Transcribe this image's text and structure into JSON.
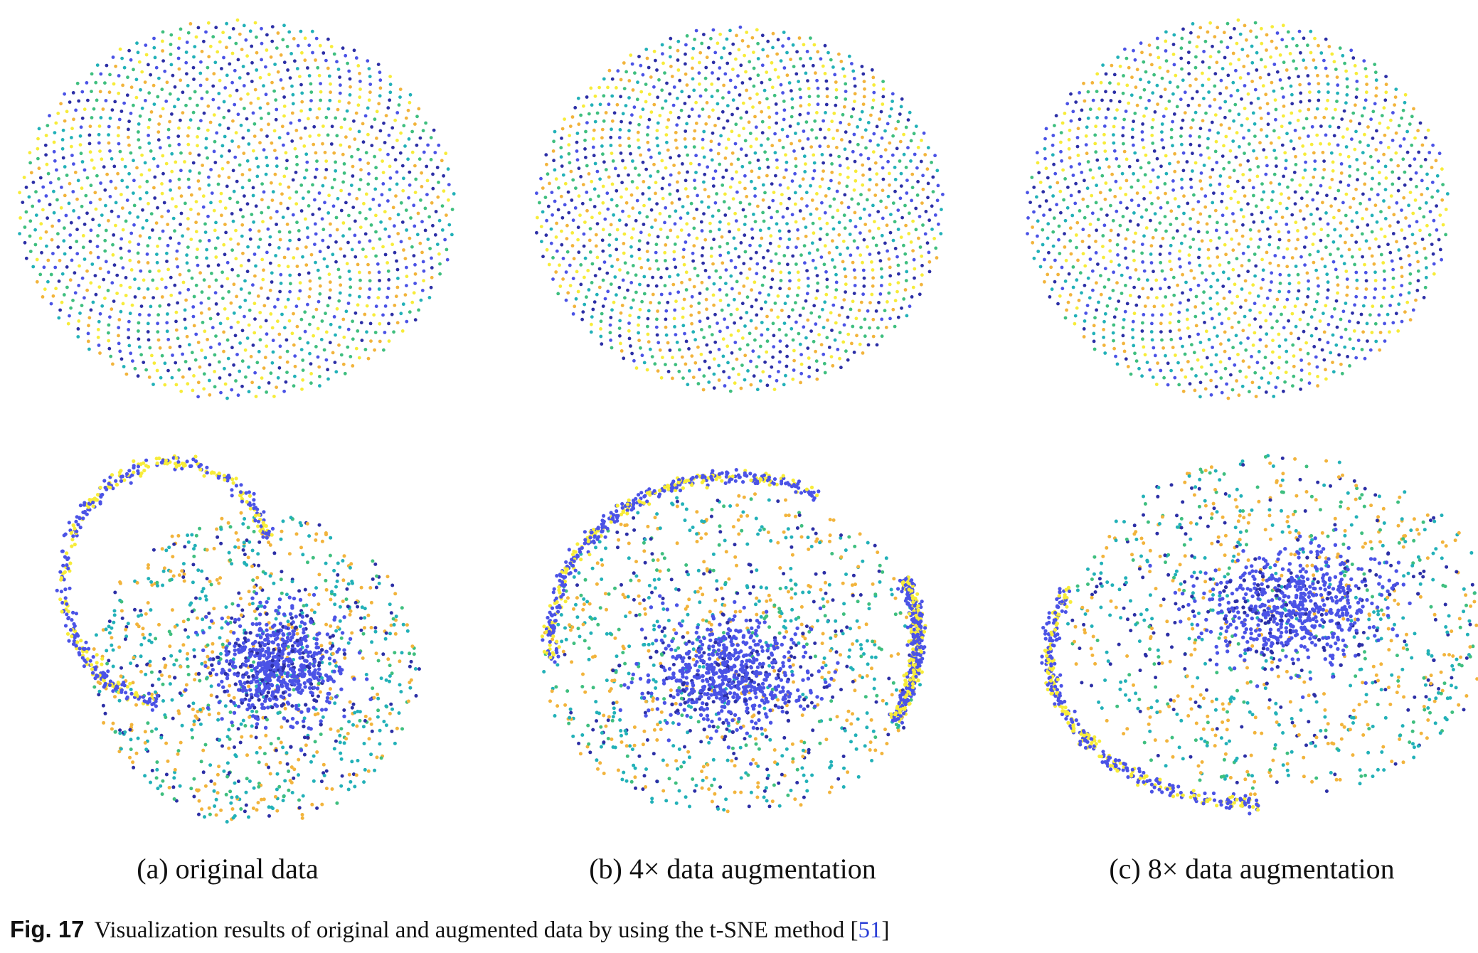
{
  "figure": {
    "label": "Fig. 17",
    "caption": "Visualization results of original and augmented data by using the t-SNE method [",
    "reference": "51",
    "caption_end": "]"
  },
  "panels": [
    {
      "id": "a",
      "caption": "(a) original data"
    },
    {
      "id": "b",
      "caption": "(b) 4× data augmentation"
    },
    {
      "id": "c",
      "caption": "(c) 8× data augmentation"
    }
  ],
  "palette": {
    "dark_blue": "#2c2fa6",
    "blue": "#4b53e6",
    "teal": "#22b1b8",
    "green": "#3fbf7f",
    "orange": "#f2b43c",
    "yellow": "#f7ec3a"
  },
  "chart_data": [
    {
      "type": "scatter",
      "panel": "a",
      "row": "top",
      "pattern": "uniform-disc",
      "series": [
        {
          "values": []
        }
      ]
    },
    {
      "type": "scatter",
      "panel": "b",
      "row": "top",
      "pattern": "uniform-disc",
      "series": [
        {
          "values": []
        }
      ]
    },
    {
      "type": "scatter",
      "panel": "c",
      "row": "top",
      "pattern": "uniform-disc",
      "series": [
        {
          "values": []
        }
      ]
    },
    {
      "type": "scatter",
      "panel": "a",
      "row": "bottom",
      "pattern": "dense-cluster-with-arc",
      "series": [
        {
          "values": []
        }
      ]
    },
    {
      "type": "scatter",
      "panel": "b",
      "row": "bottom",
      "pattern": "dense-cluster-with-arc",
      "series": [
        {
          "values": []
        }
      ]
    },
    {
      "type": "scatter",
      "panel": "c",
      "row": "bottom",
      "pattern": "dense-cluster-with-arc",
      "series": [
        {
          "values": []
        }
      ]
    }
  ]
}
